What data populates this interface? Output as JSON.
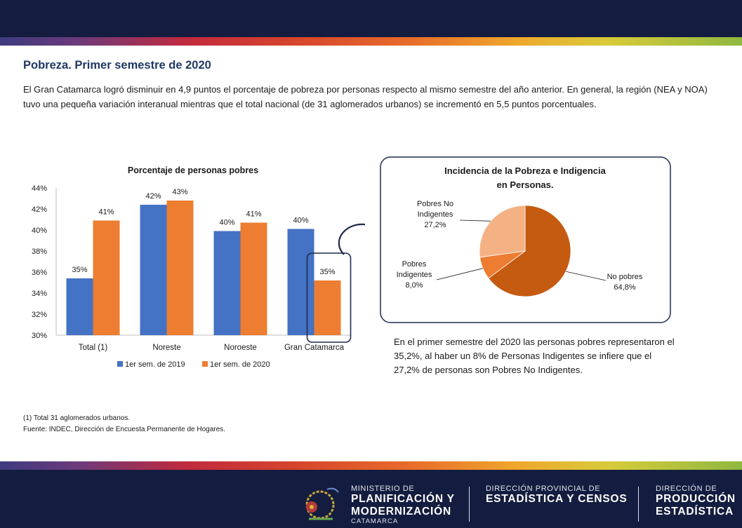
{
  "header": {
    "title": "Pobreza. Primer semestre de 2020",
    "paragraph": "El Gran Catamarca logró disminuir en 4,9 puntos el porcentaje de pobreza por personas respecto al mismo semestre del año anterior. En general, la región (NEA y NOA) tuvo una pequeña variación interanual mientras que el total nacional (de 31 aglomerados urbanos) se incrementó en 5,5 puntos porcentuales."
  },
  "chart_data": [
    {
      "type": "bar",
      "title": "Porcentaje de personas pobres",
      "categories": [
        "Total (1)",
        "Noreste",
        "Noroeste",
        "Gran Catamarca"
      ],
      "series": [
        {
          "name": "1er sem. de 2019",
          "values": [
            35.4,
            42.4,
            39.9,
            40.1
          ],
          "labels": [
            "35%",
            "42%",
            "40%",
            "40%"
          ],
          "color": "#4472c4"
        },
        {
          "name": "1er sem. de 2020",
          "values": [
            40.9,
            42.8,
            40.7,
            35.2
          ],
          "labels": [
            "41%",
            "43%",
            "41%",
            "35%"
          ],
          "color": "#ed7d31"
        }
      ],
      "ylim": [
        30,
        44
      ],
      "yticks": [
        "30%",
        "32%",
        "34%",
        "36%",
        "38%",
        "40%",
        "42%",
        "44%"
      ],
      "xlabel": "",
      "ylabel": "",
      "highlight": "Gran Catamarca 1er sem. de 2020"
    },
    {
      "type": "pie",
      "title": "Incidencia de la Pobreza e Indigencia en Personas.",
      "slices": [
        {
          "label": "No pobres",
          "value": 64.8,
          "value_label": "64,8%",
          "color": "#c55a11"
        },
        {
          "label": "Pobres Indigentes",
          "value": 8.0,
          "value_label": "8,0%",
          "color": "#ed7d31"
        },
        {
          "label": "Pobres No Indigentes",
          "value": 27.2,
          "value_label": "27,2%",
          "color": "#f4b183"
        }
      ]
    }
  ],
  "summary": "En el primer semestre del 2020 las personas pobres representaron el 35,2%, al haber un 8% de Personas Indigentes se infiere que el 27,2% de personas son Pobres No Indigentes.",
  "footnotes": {
    "note": "(1) Total 31 aglomerados urbanos.",
    "source": "Fuente: INDEC, Dirección de Encuesta Permanente de Hogares."
  },
  "footer": {
    "ministry_small": "MINISTERIO DE",
    "ministry_line1": "PLANIFICACIÓN Y",
    "ministry_line2": "MODERNIZACIÓN",
    "ministry_place": "CATAMARCA",
    "dir1_small": "DIRECCIÓN PROVINCIAL DE",
    "dir1_big": "ESTADÍSTICA Y CENSOS",
    "dir2_small": "DIRECCIÓN DE",
    "dir2_line1": "PRODUCCIÓN",
    "dir2_line2": "ESTADÍSTICA"
  },
  "colors": {
    "navy": "#141d3f",
    "title_blue": "#1f3864"
  }
}
